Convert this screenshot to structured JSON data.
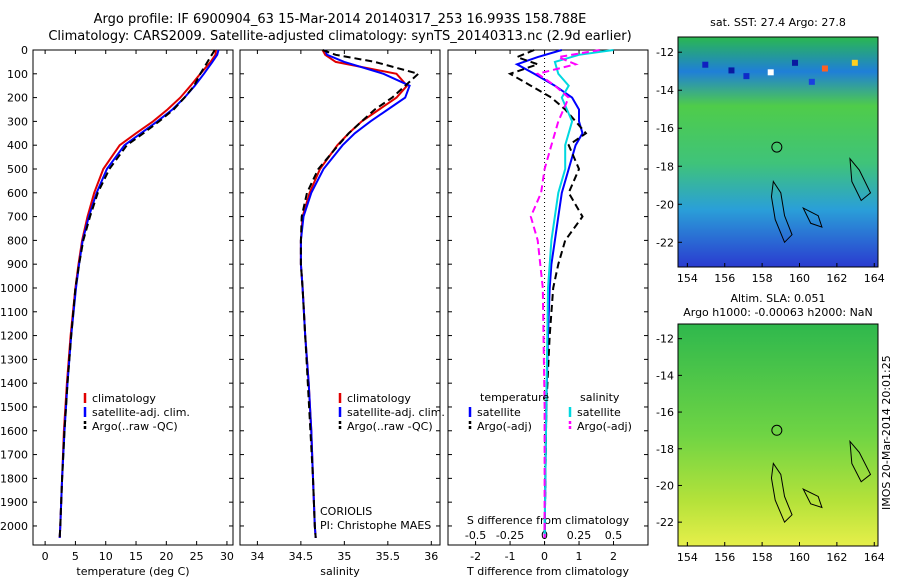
{
  "header": {
    "line1": "Argo profile: IF 6900904_63 15-Mar-2014 20140317_253 16.993S 158.788E",
    "line2": "Climatology: CARS2009. Satellite-adjusted climatology: synTS_20140313.nc (2.9d earlier)"
  },
  "credits": {
    "center": "CORIOLIS",
    "pi": "PI: Christophe MAES"
  },
  "stamp": "IMOS 20-Mar-2014 20:01:25",
  "colors": {
    "climatology": "#e00000",
    "satellite": "#0000ff",
    "argo": "#000000",
    "sat_salinity": "#00d8e0",
    "argo_salinity": "#ff00ff",
    "ocean_low": "#2a3bd0",
    "ocean_mid": "#2ab84f",
    "ocean_high": "#b5e23a"
  },
  "chart_data": [
    {
      "type": "line",
      "xlabel": "temperature (deg C)",
      "ylabel": "",
      "xlim": [
        -2,
        31
      ],
      "ylim": [
        2080,
        0
      ],
      "xticks": [
        "0",
        "5",
        "10",
        "15",
        "20",
        "25",
        "30"
      ],
      "yticks": [
        "0",
        "100",
        "200",
        "300",
        "400",
        "500",
        "600",
        "700",
        "800",
        "900",
        "1000",
        "1100",
        "1200",
        "1300",
        "1400",
        "1500",
        "1600",
        "1700",
        "1800",
        "1900",
        "2000"
      ],
      "legend": [
        "climatology",
        "satellite-adj. clim.",
        "Argo(..raw -QC)"
      ],
      "legend_position": "lower-middle",
      "series": [
        {
          "name": "climatology",
          "depth": [
            0,
            20,
            50,
            100,
            150,
            200,
            250,
            300,
            350,
            400,
            500,
            600,
            700,
            800,
            900,
            1000,
            1200,
            1400,
            1600,
            1800,
            2000,
            2050
          ],
          "values": [
            28.2,
            28.1,
            27.3,
            25.6,
            24.0,
            22.3,
            20.2,
            17.8,
            15.0,
            12.3,
            9.6,
            8.1,
            7.0,
            6.1,
            5.5,
            5.0,
            4.2,
            3.6,
            3.1,
            2.8,
            2.5,
            2.4
          ]
        },
        {
          "name": "satellite-adj. clim.",
          "depth": [
            0,
            20,
            50,
            100,
            150,
            200,
            250,
            300,
            350,
            400,
            500,
            600,
            700,
            800,
            900,
            1000,
            1200,
            1400,
            1600,
            1800,
            2000,
            2050
          ],
          "values": [
            28.6,
            28.4,
            27.6,
            26.2,
            24.7,
            23.0,
            21.0,
            18.5,
            15.8,
            13.1,
            10.2,
            8.5,
            7.2,
            6.2,
            5.6,
            5.1,
            4.3,
            3.7,
            3.2,
            2.8,
            2.5,
            2.4
          ]
        },
        {
          "name": "Argo(..raw -QC)",
          "depth": [
            0,
            20,
            50,
            100,
            150,
            200,
            250,
            300,
            350,
            400,
            500,
            600,
            700,
            800,
            900,
            1000,
            1200,
            1400,
            1600,
            1800,
            2000,
            2050
          ],
          "values": [
            28.0,
            27.5,
            26.8,
            25.6,
            24.6,
            23.0,
            21.2,
            18.8,
            16.2,
            13.5,
            10.6,
            8.7,
            7.4,
            6.3,
            5.6,
            5.0,
            4.3,
            3.7,
            3.2,
            2.8,
            2.5,
            2.4
          ]
        }
      ]
    },
    {
      "type": "line",
      "xlabel": "salinity",
      "ylabel": "",
      "xlim": [
        33.8,
        36.1
      ],
      "ylim": [
        2080,
        0
      ],
      "xticks": [
        "34",
        "34.5",
        "35",
        "35.5",
        "36"
      ],
      "legend": [
        "climatology",
        "satellite-adj. clim.",
        "Argo(..raw -QC)"
      ],
      "legend_position": "lower-right",
      "series": [
        {
          "name": "climatology",
          "depth": [
            0,
            20,
            50,
            100,
            150,
            200,
            250,
            300,
            350,
            400,
            500,
            600,
            700,
            800,
            900,
            1000,
            1200,
            1400,
            1600,
            1800,
            2000,
            2050
          ],
          "values": [
            34.75,
            34.78,
            34.9,
            35.6,
            35.72,
            35.6,
            35.4,
            35.2,
            35.05,
            34.92,
            34.72,
            34.6,
            34.52,
            34.5,
            34.5,
            34.52,
            34.55,
            34.59,
            34.62,
            34.64,
            34.66,
            34.67
          ]
        },
        {
          "name": "satellite-adj. clim.",
          "depth": [
            0,
            20,
            50,
            100,
            150,
            200,
            250,
            300,
            350,
            400,
            500,
            600,
            700,
            800,
            900,
            1000,
            1200,
            1400,
            1600,
            1800,
            2000,
            2050
          ],
          "values": [
            34.78,
            34.8,
            35.0,
            35.45,
            35.75,
            35.7,
            35.5,
            35.3,
            35.12,
            34.98,
            34.76,
            34.62,
            34.53,
            34.5,
            34.5,
            34.52,
            34.55,
            34.59,
            34.62,
            34.64,
            34.66,
            34.67
          ]
        },
        {
          "name": "Argo(..raw -QC)",
          "depth": [
            0,
            20,
            50,
            100,
            150,
            200,
            250,
            300,
            350,
            400,
            500,
            600,
            700,
            800,
            900,
            1000,
            1200,
            1400,
            1600,
            1800,
            2000,
            2050
          ],
          "values": [
            34.75,
            34.9,
            35.35,
            35.85,
            35.7,
            35.55,
            35.35,
            35.2,
            35.05,
            34.93,
            34.7,
            34.57,
            34.51,
            34.5,
            34.5,
            34.52,
            34.55,
            34.58,
            34.61,
            34.64,
            34.66,
            34.67
          ]
        }
      ]
    },
    {
      "type": "line",
      "xlabel": "T difference from climatology",
      "title": "S difference from climatology",
      "ylabel": "",
      "xlim": [
        -2.8,
        3.0
      ],
      "ylim": [
        2080,
        0
      ],
      "xticks": [
        "-2",
        "-1",
        "0",
        "1",
        "2"
      ],
      "top_xticks": [
        "-0.5",
        "-0.25",
        "0",
        "0.25",
        "0.5"
      ],
      "legend": [
        "temperature",
        "satellite",
        "Argo(-adj)",
        "salinity",
        "satellite",
        "Argo(-adj)"
      ],
      "legend_position": "lower-middle",
      "series": [
        {
          "name": "satellite",
          "depth": [
            0,
            30,
            60,
            100,
            150,
            200,
            250,
            300,
            350,
            400,
            500,
            600,
            700,
            800,
            900,
            1000,
            1200,
            1500,
            2050
          ],
          "values": [
            0.5,
            -0.2,
            -0.8,
            -0.3,
            0.3,
            0.8,
            1.0,
            1.0,
            1.1,
            0.9,
            0.7,
            0.5,
            0.4,
            0.3,
            0.2,
            0.15,
            0.1,
            0.05,
            0.0
          ]
        },
        {
          "name": "Argo(-adj)",
          "depth": [
            0,
            30,
            60,
            100,
            150,
            200,
            250,
            300,
            350,
            400,
            500,
            600,
            700,
            800,
            900,
            1000,
            1200,
            1500,
            2050
          ],
          "values": [
            -0.3,
            -0.8,
            -0.2,
            -1.0,
            -0.4,
            0.2,
            0.6,
            0.9,
            1.2,
            0.7,
            1.0,
            0.7,
            1.1,
            0.6,
            0.4,
            0.25,
            0.15,
            0.05,
            0.0
          ]
        },
        {
          "name": "satellite",
          "depth": [
            0,
            20,
            50,
            100,
            150,
            200,
            300,
            400,
            500,
            600,
            800,
            1000,
            1500,
            2050
          ],
          "values": [
            2.0,
            1.0,
            0.3,
            0.4,
            0.7,
            0.5,
            0.8,
            0.6,
            0.6,
            0.4,
            0.2,
            0.1,
            0.05,
            0.0
          ]
        },
        {
          "name": "Argo(-adj)",
          "depth": [
            0,
            30,
            60,
            100,
            150,
            200,
            300,
            400,
            500,
            600,
            700,
            800,
            1000,
            1500,
            2050
          ],
          "values": [
            1.6,
            0.4,
            0.9,
            -0.2,
            0.3,
            0.7,
            0.4,
            0.2,
            0.0,
            -0.1,
            -0.4,
            -0.2,
            -0.05,
            0.0,
            0.0
          ]
        }
      ]
    },
    {
      "type": "heatmap",
      "title": "sat. SST: 27.4 Argo: 27.8",
      "xticks": [
        "154",
        "156",
        "158",
        "160",
        "162",
        "164"
      ],
      "yticks": [
        "-12",
        "-14",
        "-16",
        "-18",
        "-20",
        "-22"
      ],
      "xlim": [
        153.5,
        164.2
      ],
      "ylim": [
        -11.2,
        -23.3
      ],
      "marker": {
        "lon": 158.788,
        "lat": -16.993
      }
    },
    {
      "type": "heatmap",
      "title": "Altim. SLA: 0.051",
      "subtitle": "Argo h1000: -0.00063 h2000: NaN",
      "xticks": [
        "154",
        "156",
        "158",
        "160",
        "162",
        "164"
      ],
      "yticks": [
        "-12",
        "-14",
        "-16",
        "-18",
        "-20",
        "-22"
      ],
      "xlim": [
        153.5,
        164.2
      ],
      "ylim": [
        -11.2,
        -23.3
      ],
      "marker": {
        "lon": 158.788,
        "lat": -16.993
      }
    }
  ]
}
